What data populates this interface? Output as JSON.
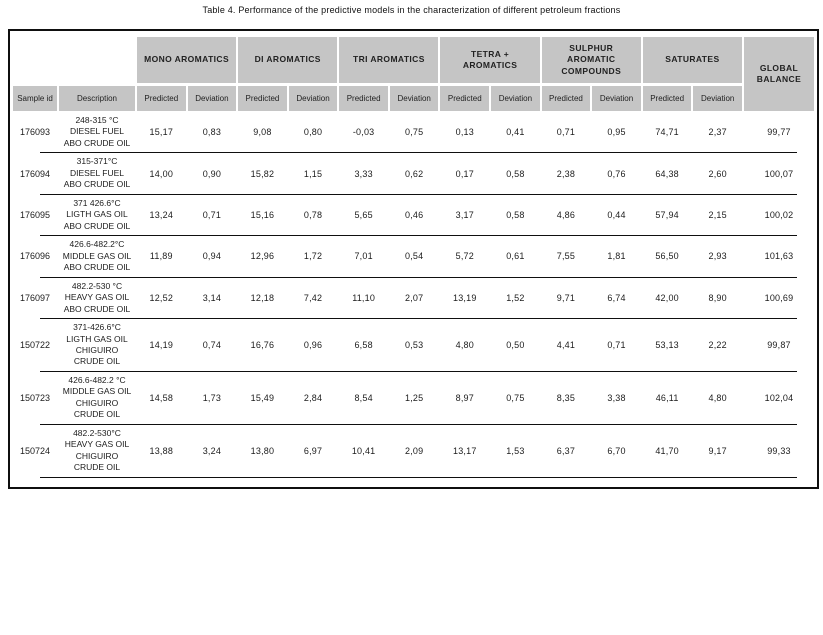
{
  "title": "Table 4.  Performance of the predictive models in the characterization of different petroleum fractions",
  "table": {
    "group_headers": [
      "MONO AROMATICS",
      "DI AROMATICS",
      "TRI AROMATICS",
      "TETRA + AROMATICS",
      "SULPHUR AROMATIC COMPOUNDS",
      "SATURATES"
    ],
    "global_balance_label": "GLOBAL BALANCE",
    "sub_headers": {
      "sample": "Sample id",
      "description": "Description",
      "predicted": "Predicted",
      "deviation": "Deviation"
    },
    "rows": [
      {
        "sample_id": "176093",
        "description": "248-315 °C DIESEL FUEL ABO CRUDE OIL",
        "values": [
          "15,17",
          "0,83",
          "9,08",
          "0,80",
          "-0,03",
          "0,75",
          "0,13",
          "0,41",
          "0,71",
          "0,95",
          "74,71",
          "2,37"
        ],
        "global_balance": "99,77"
      },
      {
        "sample_id": "176094",
        "description": "315-371°C DIESEL FUEL ABO CRUDE OIL",
        "values": [
          "14,00",
          "0,90",
          "15,82",
          "1,15",
          "3,33",
          "0,62",
          "0,17",
          "0,58",
          "2,38",
          "0,76",
          "64,38",
          "2,60"
        ],
        "global_balance": "100,07"
      },
      {
        "sample_id": "176095",
        "description": "371 426.6°C LIGTH GAS OIL ABO CRUDE OIL",
        "values": [
          "13,24",
          "0,71",
          "15,16",
          "0,78",
          "5,65",
          "0,46",
          "3,17",
          "0,58",
          "4,86",
          "0,44",
          "57,94",
          "2,15"
        ],
        "global_balance": "100,02"
      },
      {
        "sample_id": "176096",
        "description": "426.6-482.2°C MIDDLE GAS OIL ABO CRUDE OIL",
        "values": [
          "11,89",
          "0,94",
          "12,96",
          "1,72",
          "7,01",
          "0,54",
          "5,72",
          "0,61",
          "7,55",
          "1,81",
          "56,50",
          "2,93"
        ],
        "global_balance": "101,63"
      },
      {
        "sample_id": "176097",
        "description": "482.2-530 °C HEAVY GAS OIL ABO CRUDE OIL",
        "values": [
          "12,52",
          "3,14",
          "12,18",
          "7,42",
          "11,10",
          "2,07",
          "13,19",
          "1,52",
          "9,71",
          "6,74",
          "42,00",
          "8,90"
        ],
        "global_balance": "100,69"
      },
      {
        "sample_id": "150722",
        "description": "371-426.6°C LIGTH GAS OIL CHIGUIRO CRUDE OIL",
        "values": [
          "14,19",
          "0,74",
          "16,76",
          "0,96",
          "6,58",
          "0,53",
          "4,80",
          "0,50",
          "4,41",
          "0,71",
          "53,13",
          "2,22"
        ],
        "global_balance": "99,87"
      },
      {
        "sample_id": "150723",
        "description": "426.6-482.2 °C MIDDLE GAS OIL CHIGUIRO CRUDE OIL",
        "values": [
          "14,58",
          "1,73",
          "15,49",
          "2,84",
          "8,54",
          "1,25",
          "8,97",
          "0,75",
          "8,35",
          "3,38",
          "46,11",
          "4,80"
        ],
        "global_balance": "102,04"
      },
      {
        "sample_id": "150724",
        "description": "482.2-530°C HEAVY GAS OIL CHIGUIRO CRUDE OIL",
        "values": [
          "13,88",
          "3,24",
          "13,80",
          "6,97",
          "10,41",
          "2,09",
          "13,17",
          "1,53",
          "6,37",
          "6,70",
          "41,70",
          "9,17"
        ],
        "global_balance": "99,33"
      }
    ]
  }
}
